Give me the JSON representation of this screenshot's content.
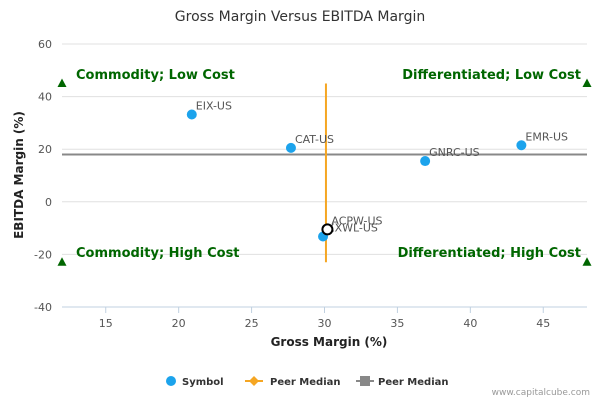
{
  "chart_data": {
    "type": "scatter",
    "title": "Gross Margin Versus EBITDA Margin",
    "xlabel": "Gross Margin (%)",
    "ylabel": "EBITDA Margin (%)",
    "xlim": [
      12,
      48
    ],
    "ylim": [
      -40,
      60
    ],
    "xticks": [
      15,
      20,
      25,
      30,
      35,
      40,
      45
    ],
    "yticks": [
      -40,
      -20,
      0,
      20,
      40,
      60
    ],
    "grid": "horizontal",
    "points": [
      {
        "label": "EIX-US",
        "x": 20.9,
        "y": 33.2
      },
      {
        "label": "CAT-US",
        "x": 27.7,
        "y": 20.5
      },
      {
        "label": "GNRC-US",
        "x": 36.9,
        "y": 15.5
      },
      {
        "label": "EMR-US",
        "x": 43.5,
        "y": 21.5
      },
      {
        "label": "XXWL-US",
        "x": 29.9,
        "y": -13.2
      },
      {
        "label": "ACPW-US",
        "x": 30.2,
        "y": -10.5,
        "highlight": true
      }
    ],
    "peer_median_x": {
      "value": 30.1,
      "y_range": [
        -23,
        45
      ]
    },
    "peer_median_y": {
      "value": 18,
      "x_range": [
        12,
        48
      ]
    },
    "quadrant_labels": {
      "top_left": "Commodity; Low Cost",
      "top_right": "Differentiated; Low Cost",
      "bottom_left": "Commodity; High Cost",
      "bottom_right": "Differentiated; High Cost"
    },
    "quadrant_markers": [
      {
        "x": 12,
        "y": 45
      },
      {
        "x": 48,
        "y": 45
      },
      {
        "x": 12,
        "y": -23
      },
      {
        "x": 48,
        "y": -23
      }
    ],
    "legend": {
      "position": "bottom-center",
      "items": [
        {
          "label": "Symbol",
          "color": "#1ca3ec",
          "marker": "circle"
        },
        {
          "label": "Peer Median",
          "color": "#f5a623",
          "marker": "line-diamond"
        },
        {
          "label": "Peer Median",
          "color": "#888888",
          "marker": "line-square"
        }
      ]
    },
    "colors": {
      "point": "#1ca3ec",
      "median_x": "#f5a623",
      "median_y": "#888888",
      "quadrant": "#006600",
      "grid": "#e0e0e0"
    }
  },
  "credit": "www.capitalcube.com"
}
